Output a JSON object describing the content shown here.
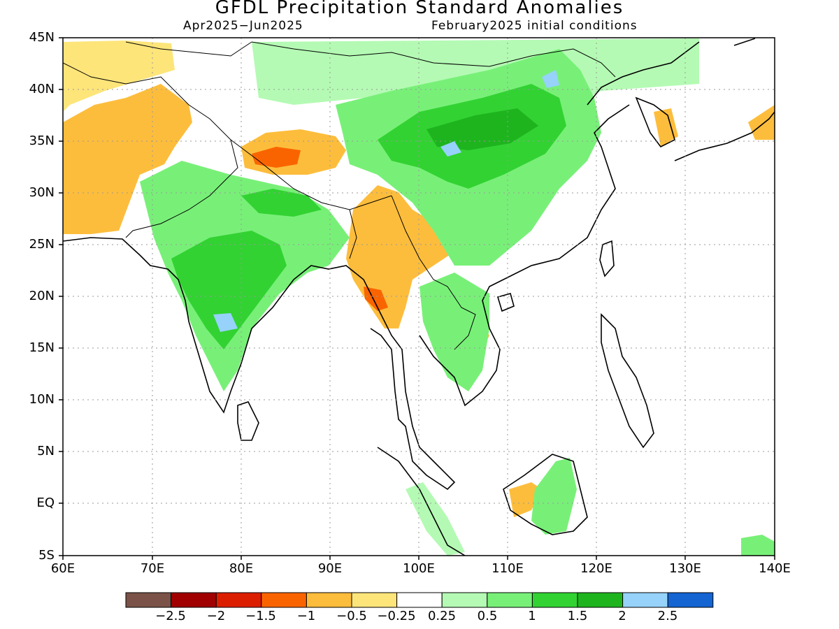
{
  "title": "GFDL Precipitation Standard Anomalies",
  "period": "Apr2025−Jun2025",
  "initial_conditions": "February2025 initial conditions",
  "colorbar": {
    "colors": [
      "#7a5248",
      "#a00000",
      "#dc1e00",
      "#fa6400",
      "#fdbd3c",
      "#fde57a",
      "#ffffff",
      "#b4fab4",
      "#78f078",
      "#32d232",
      "#1eb41e",
      "#96d2fa",
      "#1464d2"
    ],
    "labels": [
      "−2.5",
      "−2",
      "−1.5",
      "−1",
      "−0.5",
      "−0.25",
      "0.25",
      "0.5",
      "1",
      "1.5",
      "2",
      "2.5"
    ]
  },
  "map": {
    "lon_range": [
      60,
      140
    ],
    "lat_range": [
      -5,
      45
    ],
    "x_ticks": [
      "60E",
      "70E",
      "80E",
      "90E",
      "100E",
      "110E",
      "120E",
      "130E",
      "140E"
    ],
    "y_ticks": [
      "45N",
      "40N",
      "35N",
      "30N",
      "25N",
      "20N",
      "15N",
      "10N",
      "5N",
      "EQ",
      "5S"
    ],
    "anomaly_regions": [
      {
        "name": "afghanistan-iran-dry",
        "level": "-0.5",
        "color": "#fdbd3c"
      },
      {
        "name": "tibet-dry",
        "level": "-1",
        "color": "#fa6400"
      },
      {
        "name": "myanmar-dry",
        "level": "-0.5",
        "color": "#fdbd3c"
      },
      {
        "name": "myanmar-core-dry",
        "level": "-1",
        "color": "#fa6400"
      },
      {
        "name": "india-wet",
        "level": "1",
        "color": "#78f078"
      },
      {
        "name": "india-core-wet",
        "level": "1.5",
        "color": "#32d232"
      },
      {
        "name": "china-wet",
        "level": "1",
        "color": "#78f078"
      },
      {
        "name": "china-core-wet",
        "level": "2",
        "color": "#1eb41e"
      },
      {
        "name": "mongolia-wet",
        "level": "0.5",
        "color": "#b4fab4"
      },
      {
        "name": "borneo-wet",
        "level": "1",
        "color": "#78f078"
      }
    ]
  }
}
